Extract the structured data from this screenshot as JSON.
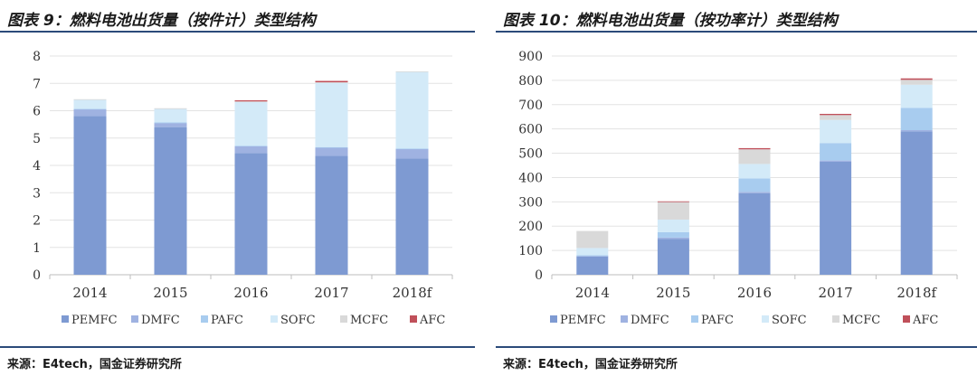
{
  "colors": {
    "PEMFC": "#7e9ad2",
    "DMFC": "#9fb2e1",
    "PAFC": "#a8ccef",
    "SOFC": "#d3eaf8",
    "MCFC": "#d9d9d9",
    "AFC": "#c0505a",
    "rule": "#2b4a7a"
  },
  "left": {
    "title": "图表 9：燃料电池出货量（按件计）类型结构",
    "source": "来源：E4tech，国金证券研究所",
    "chart_data": {
      "type": "bar",
      "stacked": true,
      "categories": [
        "2014",
        "2015",
        "2016",
        "2017",
        "2018f"
      ],
      "ylim": [
        0,
        8
      ],
      "yticks": [
        0,
        1,
        2,
        3,
        4,
        5,
        6,
        7,
        8
      ],
      "legend_position": "bottom",
      "series": [
        {
          "name": "PEMFC",
          "values": [
            5.8,
            5.4,
            4.45,
            4.35,
            4.25
          ]
        },
        {
          "name": "DMFC",
          "values": [
            0.25,
            0.15,
            0.25,
            0.3,
            0.35
          ]
        },
        {
          "name": "PAFC",
          "values": [
            0.02,
            0.02,
            0.02,
            0.02,
            0.02
          ]
        },
        {
          "name": "SOFC",
          "values": [
            0.33,
            0.5,
            1.6,
            2.35,
            2.8
          ]
        },
        {
          "name": "MCFC",
          "values": [
            0.02,
            0.02,
            0.02,
            0.02,
            0.02
          ]
        },
        {
          "name": "AFC",
          "values": [
            0.0,
            0.0,
            0.04,
            0.05,
            0.0
          ]
        }
      ]
    }
  },
  "right": {
    "title": "图表 10：燃料电池出货量（按功率计）类型结构",
    "source": "来源：E4tech，国金证券研究所",
    "chart_data": {
      "type": "bar",
      "stacked": true,
      "categories": [
        "2014",
        "2015",
        "2016",
        "2017",
        "2018f"
      ],
      "ylim": [
        0,
        900
      ],
      "yticks": [
        0,
        100,
        200,
        300,
        400,
        500,
        600,
        700,
        800,
        900
      ],
      "legend_position": "bottom",
      "series": [
        {
          "name": "PEMFC",
          "values": [
            75,
            148,
            336,
            465,
            590
          ]
        },
        {
          "name": "DMFC",
          "values": [
            3,
            5,
            5,
            5,
            5
          ]
        },
        {
          "name": "PAFC",
          "values": [
            2,
            22,
            55,
            72,
            92
          ]
        },
        {
          "name": "SOFC",
          "values": [
            30,
            52,
            60,
            95,
            95
          ]
        },
        {
          "name": "MCFC",
          "values": [
            70,
            73,
            60,
            20,
            20
          ]
        },
        {
          "name": "AFC",
          "values": [
            0,
            2,
            5,
            5,
            6
          ]
        }
      ]
    }
  }
}
